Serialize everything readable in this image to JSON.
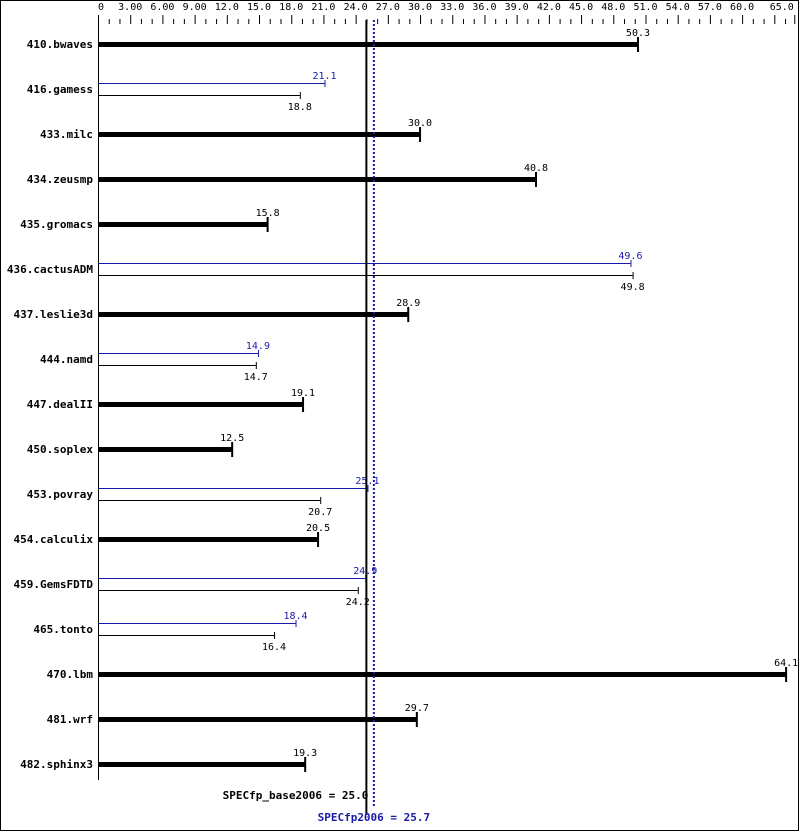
{
  "chart_data": {
    "type": "bar",
    "orientation": "horizontal",
    "xlim": [
      0,
      65
    ],
    "x_tick_labels": [
      "0",
      "3.00",
      "6.00",
      "9.00",
      "12.0",
      "15.0",
      "18.0",
      "21.0",
      "24.0",
      "27.0",
      "30.0",
      "33.0",
      "36.0",
      "39.0",
      "42.0",
      "45.0",
      "48.0",
      "51.0",
      "54.0",
      "57.0",
      "60.0",
      "65.0"
    ],
    "categories": [
      "410.bwaves",
      "416.gamess",
      "433.milc",
      "434.zeusmp",
      "435.gromacs",
      "436.cactusADM",
      "437.leslie3d",
      "444.namd",
      "447.dealII",
      "450.soplex",
      "453.povray",
      "454.calculix",
      "459.GemsFDTD",
      "465.tonto",
      "470.lbm",
      "481.wrf",
      "482.sphinx3"
    ],
    "series": [
      {
        "key": "base",
        "values": [
          50.3,
          18.8,
          30.0,
          40.8,
          15.8,
          49.8,
          28.9,
          14.7,
          19.1,
          12.5,
          20.7,
          20.5,
          24.2,
          16.4,
          64.1,
          29.7,
          19.3
        ]
      },
      {
        "key": "peak",
        "values": [
          50.3,
          21.1,
          30.0,
          40.8,
          15.8,
          49.6,
          28.9,
          14.9,
          19.1,
          12.5,
          25.1,
          20.5,
          24.9,
          18.4,
          64.1,
          29.7,
          19.3
        ]
      }
    ],
    "reference_lines": [
      {
        "label": "SPECfp_base2006 = 25.0",
        "value": 25.0,
        "style": "solid",
        "color": "#000000"
      },
      {
        "label": "SPECfp2006 = 25.7",
        "value": 25.7,
        "style": "dotted",
        "color": "#1a1aa8"
      }
    ],
    "colors": {
      "base": "#000000",
      "peak": "#1a1aa8"
    }
  }
}
